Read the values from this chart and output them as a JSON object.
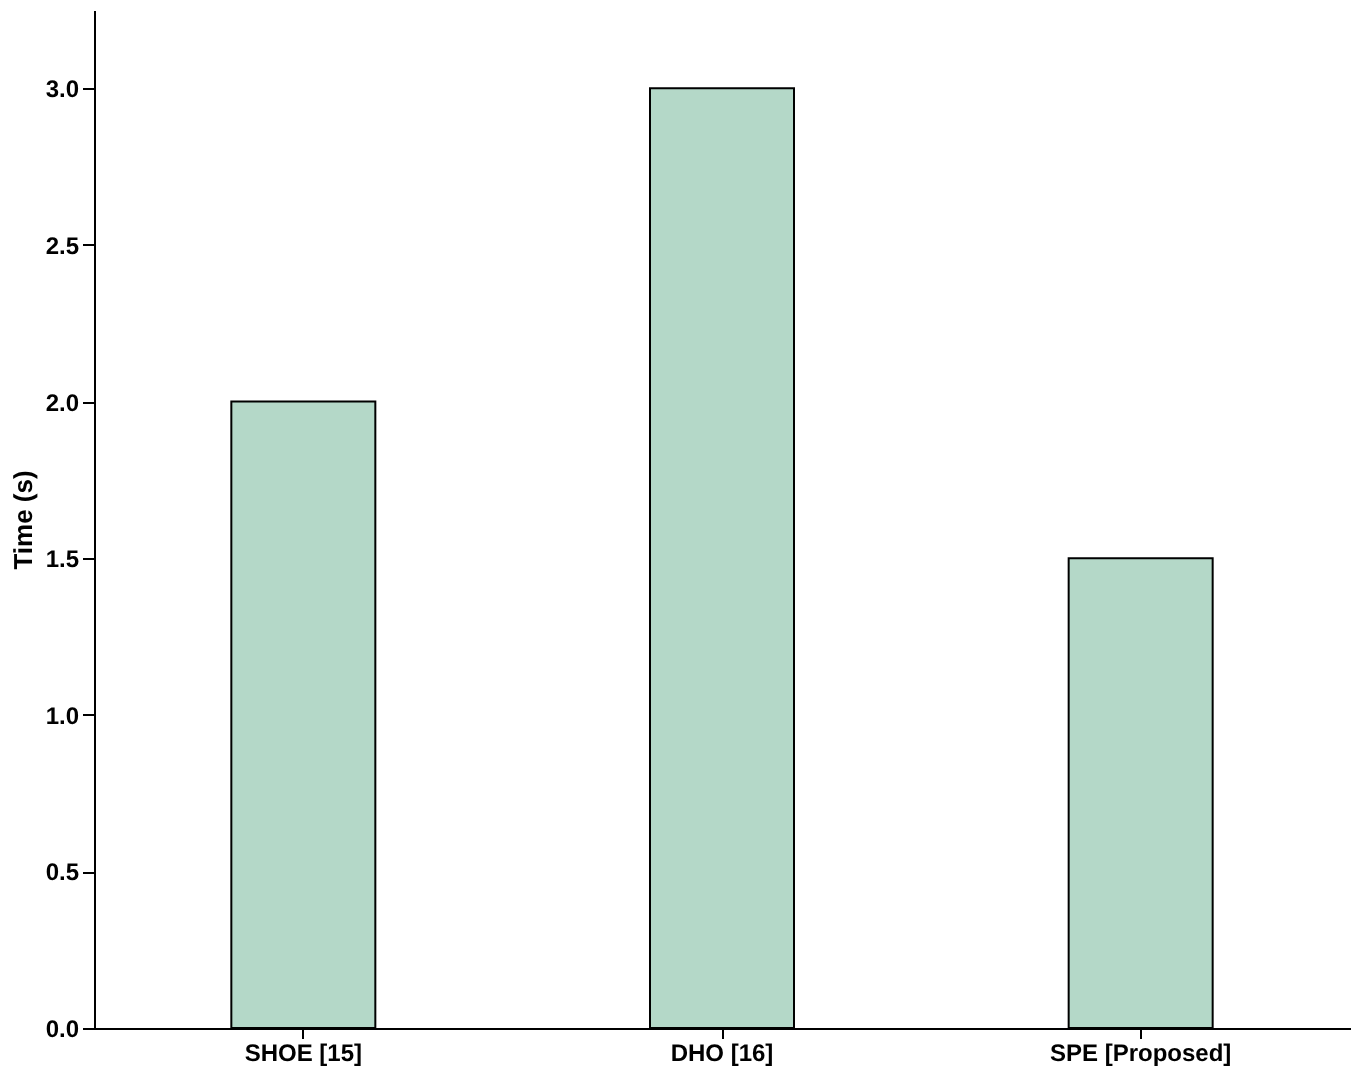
{
  "chart_data": {
    "type": "bar",
    "ylabel": "Time (s)",
    "categories": [
      "SHOE [15]",
      "DHO [16]",
      "SPE [Proposed]"
    ],
    "values": [
      2.0,
      3.0,
      1.5
    ],
    "color": "#b4d8c8",
    "ylim": [
      0,
      3.25
    ],
    "yticks": [
      {
        "value": 0,
        "label": "0.0"
      },
      {
        "value": 0.5,
        "label": "0.5"
      },
      {
        "value": 1,
        "label": "1.0"
      },
      {
        "value": 1.5,
        "label": "1.5"
      },
      {
        "value": 2,
        "label": "2.0"
      },
      {
        "value": 2.5,
        "label": "2.5"
      },
      {
        "value": 3,
        "label": "3.0"
      }
    ],
    "grid": false
  }
}
